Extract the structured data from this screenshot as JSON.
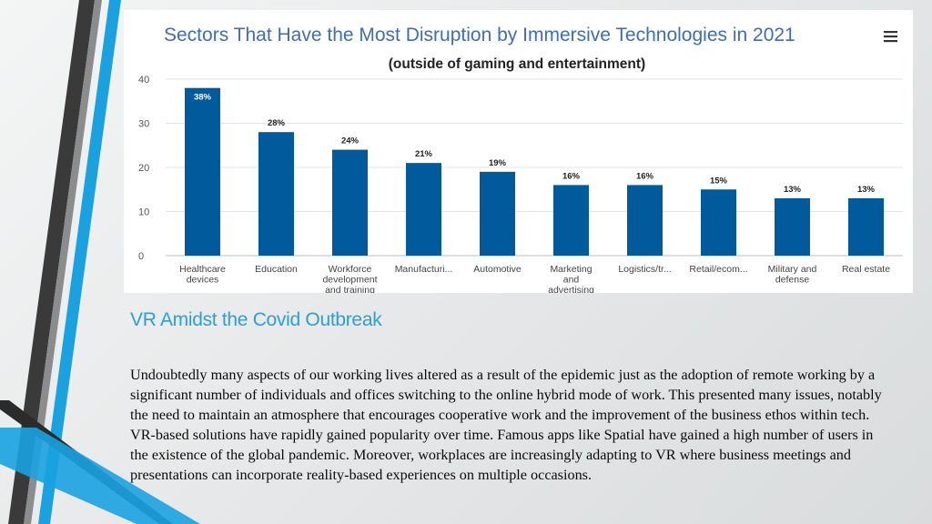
{
  "chart_data": {
    "type": "bar",
    "title": "Sectors That Have the Most Disruption by Immersive Technologies in 2021",
    "subtitle": "(outside of gaming and entertainment)",
    "categories": [
      [
        "Healthcare",
        "devices"
      ],
      [
        "Education"
      ],
      [
        "Workforce",
        "development",
        "and training"
      ],
      [
        "Manufacturi..."
      ],
      [
        "Automotive"
      ],
      [
        "Marketing",
        "and",
        "advertising"
      ],
      [
        "Logistics/tr..."
      ],
      [
        "Retail/ecom..."
      ],
      [
        "Military and",
        "defense"
      ],
      [
        "Real estate"
      ]
    ],
    "values": [
      38,
      28,
      24,
      21,
      19,
      16,
      16,
      15,
      13,
      13
    ],
    "data_labels": [
      "38%",
      "28%",
      "24%",
      "21%",
      "19%",
      "16%",
      "16%",
      "15%",
      "13%",
      "13%"
    ],
    "ylim": [
      0,
      40
    ],
    "yticks": [
      0,
      10,
      20,
      30,
      40
    ],
    "xlabel": "",
    "ylabel": "",
    "grid": true,
    "bar_color": "#005a9c",
    "label_color": "#222222",
    "inside_label_color": "#ffffff"
  },
  "colors": {
    "heading": "#2aa0d8",
    "accent_blue": "#1aa2e0",
    "accent_dark": "#333333"
  },
  "icons": {
    "chart_menu": "hamburger-menu-icon"
  },
  "section": {
    "heading": "VR Amidst the Covid Outbreak",
    "paragraph": "Undoubtedly many aspects of our working lives altered as a result of the epidemic just as the adoption of remote working by a significant number of individuals and offices switching to the online hybrid mode of work. This presented many issues, notably the need to maintain an atmosphere that encourages cooperative work and the improvement of the business ethos within tech. VR-based solutions have rapidly gained popularity over time. Famous apps like Spatial have gained a high number of users in the existence of the global pandemic. Moreover, workplaces are increasingly adapting to VR where business meetings and presentations can incorporate reality-based experiences on multiple occasions."
  }
}
